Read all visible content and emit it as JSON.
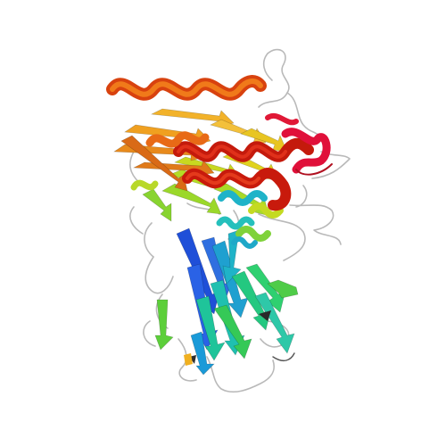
{
  "image": {
    "subject": "protein-ribbon-cartoon",
    "background": "#ffffff",
    "palette": {
      "n_terminus": "#1f4fd8",
      "blue": "#2f6fe0",
      "cyan": "#1fb3c8",
      "teal": "#1fc49a",
      "green": "#35c957",
      "lime": "#9bd82a",
      "yellow": "#e0d21f",
      "orange": "#f0a020",
      "dark_orange": "#e0701a",
      "red": "#d01a10",
      "crimson": "#e0103a",
      "coil": "#b9b9b9"
    }
  }
}
